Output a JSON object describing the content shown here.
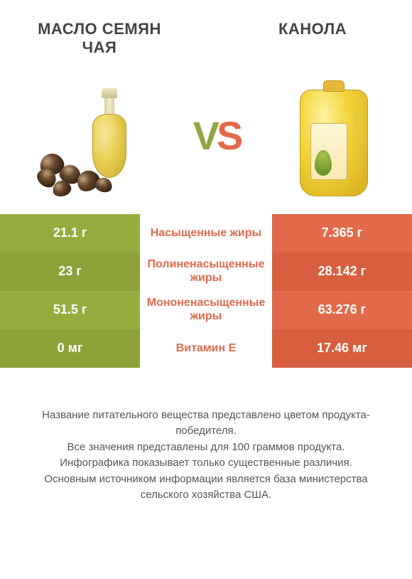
{
  "colors": {
    "green": "#95ad3f",
    "green_dark": "#8ca238",
    "orange": "#e06a4a",
    "orange_dark": "#d75f3f",
    "text": "#555555",
    "title": "#444444",
    "white": "#ffffff",
    "bg": "#ffffff"
  },
  "titles": {
    "left": "МАСЛО СЕМЯН ЧАЯ",
    "right": "КАНОЛА"
  },
  "vs_label": {
    "v": "V",
    "s": "S"
  },
  "rows": [
    {
      "left": "21.1 г",
      "label": "Насыщенные жиры",
      "right": "7.365 г",
      "winner": "right"
    },
    {
      "left": "23 г",
      "label": "Полиненасыщенные жиры",
      "right": "28.142 г",
      "winner": "right"
    },
    {
      "left": "51.5 г",
      "label": "Мононенасыщенные жиры",
      "right": "63.276 г",
      "winner": "right"
    },
    {
      "left": "0 мг",
      "label": "Витамин E",
      "right": "17.46 мг",
      "winner": "right"
    }
  ],
  "footer": [
    "Название питательного вещества представлено цветом продукта-победителя.",
    "Все значения представлены для 100 граммов продукта.",
    "Инфографика показывает только существенные различия.",
    "Основным источником информации является база министерства сельского хозяйства США."
  ]
}
